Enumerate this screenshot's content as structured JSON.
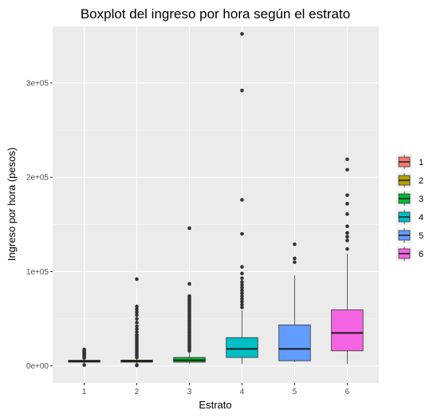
{
  "chart_data": {
    "type": "boxplot",
    "title": "Boxplot del ingreso por hora según el estrato",
    "xlabel": "Estrato",
    "ylabel": "Ingreso por hora (pesos)",
    "ylim": [
      -18000,
      360000
    ],
    "yticks": [
      {
        "value": 0,
        "label": "0e+00"
      },
      {
        "value": 100000,
        "label": "1e+05"
      },
      {
        "value": 200000,
        "label": "2e+05"
      },
      {
        "value": 300000,
        "label": "3e+05"
      }
    ],
    "grid": true,
    "legend_position": "right",
    "categories": [
      "1",
      "2",
      "3",
      "4",
      "5",
      "6"
    ],
    "boxes": [
      {
        "name": "1",
        "color": "#F8766D",
        "whisker_low": 2500,
        "q1": 4000,
        "median": 5000,
        "q3": 6000,
        "whisker_high": 7500,
        "outliers": [
          1000,
          8500,
          9500,
          10500,
          11500,
          12500,
          13500,
          14500,
          15500,
          16500,
          17500
        ]
      },
      {
        "name": "2",
        "color": "#B79F00",
        "whisker_low": 2500,
        "q1": 4000,
        "median": 5000,
        "q3": 6200,
        "whisker_high": 7500,
        "outliers": [
          500,
          1000,
          9000,
          11000,
          13000,
          15000,
          17000,
          19000,
          21000,
          23000,
          25000,
          27000,
          29000,
          31000,
          33000,
          36000,
          39000,
          42000,
          46000,
          50000,
          54000,
          57000,
          60000,
          63000,
          92000
        ]
      },
      {
        "name": "3",
        "color": "#00BA38",
        "whisker_low": 2500,
        "q1": 4000,
        "median": 6000,
        "q3": 9000,
        "whisker_high": 14000,
        "outliers": [
          16000,
          18000,
          20000,
          22000,
          24000,
          26000,
          28000,
          30000,
          32000,
          34000,
          36000,
          38000,
          40000,
          42000,
          44000,
          46000,
          48000,
          50000,
          52000,
          54000,
          56000,
          58000,
          60000,
          62000,
          64000,
          66000,
          68000,
          70000,
          72000,
          74000,
          87000,
          146000
        ]
      },
      {
        "name": "4",
        "color": "#00BFC4",
        "whisker_low": 2000,
        "q1": 9000,
        "median": 18000,
        "q3": 30000,
        "whisker_high": 59000,
        "outliers": [
          62000,
          65000,
          68000,
          71000,
          74000,
          77000,
          80000,
          83000,
          86000,
          89000,
          93000,
          98000,
          105000,
          140000,
          176000,
          292000,
          352000
        ]
      },
      {
        "name": "5",
        "color": "#619CFF",
        "whisker_low": 4000,
        "q1": 5500,
        "median": 18000,
        "q3": 43500,
        "whisker_high": 96000,
        "outliers": [
          110000,
          114000,
          129000
        ]
      },
      {
        "name": "6",
        "color": "#F564E3",
        "whisker_low": 2000,
        "q1": 16000,
        "median": 35000,
        "q3": 59500,
        "whisker_high": 119000,
        "outliers": [
          124000,
          133000,
          137000,
          141000,
          148000,
          161000,
          172000,
          181000,
          208000,
          219000
        ]
      }
    ]
  }
}
